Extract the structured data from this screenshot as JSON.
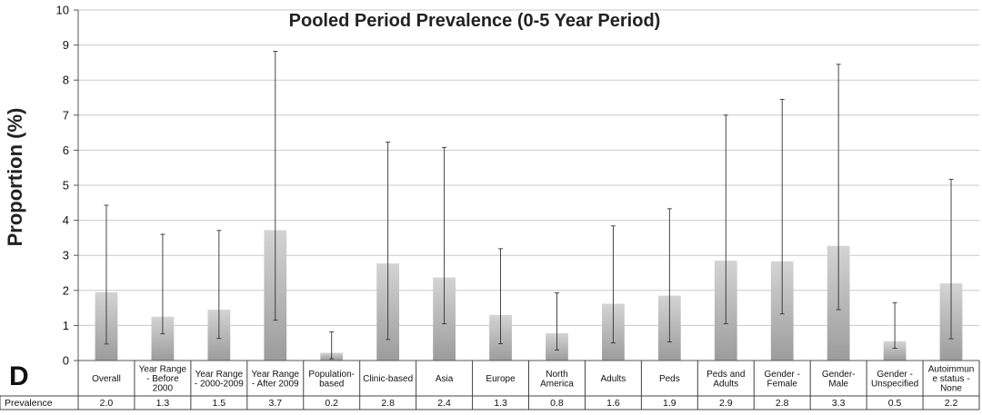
{
  "chart_data": {
    "type": "bar",
    "title": "Pooled Period Prevalence (0-5 Year Period)",
    "ylabel": "Proportion (%)",
    "panel_label": "D",
    "ylim": [
      0,
      10
    ],
    "yticks": [
      0,
      1,
      2,
      3,
      4,
      5,
      6,
      7,
      8,
      9,
      10
    ],
    "grid": true,
    "table_row_label": "Prevalence",
    "categories": [
      [
        "Overall"
      ],
      [
        "Year Range",
        "- Before",
        "2000"
      ],
      [
        "Year Range",
        "- 2000-2009"
      ],
      [
        "Year Range",
        "- After 2009"
      ],
      [
        "Population-",
        "based"
      ],
      [
        "Clinic-based"
      ],
      [
        "Asia"
      ],
      [
        "Europe"
      ],
      [
        "North",
        "America"
      ],
      [
        "Adults"
      ],
      [
        "Peds"
      ],
      [
        "Peds and",
        "Adults"
      ],
      [
        "Gender -",
        "Female"
      ],
      [
        "Gender-",
        "Male"
      ],
      [
        "Gender -",
        "Unspecified"
      ],
      [
        "Autoimmun",
        "e status -",
        "None"
      ]
    ],
    "values": [
      1.95,
      1.25,
      1.45,
      3.72,
      0.22,
      2.77,
      2.37,
      1.3,
      0.78,
      1.62,
      1.85,
      2.85,
      2.83,
      3.27,
      0.55,
      2.2
    ],
    "value_labels": [
      "2.0",
      "1.3",
      "1.5",
      "3.7",
      "0.2",
      "2.8",
      "2.4",
      "1.3",
      "0.8",
      "1.6",
      "1.9",
      "2.9",
      "2.8",
      "3.3",
      "0.5",
      "2.2"
    ],
    "error_low": [
      0.47,
      0.76,
      0.63,
      1.15,
      0.05,
      0.6,
      1.05,
      0.48,
      0.3,
      0.5,
      0.53,
      1.05,
      1.33,
      1.45,
      0.35,
      0.62
    ],
    "error_high": [
      4.43,
      3.6,
      3.71,
      8.82,
      0.82,
      6.23,
      6.08,
      3.19,
      1.93,
      3.84,
      4.33,
      7.0,
      7.45,
      8.45,
      1.65,
      5.17
    ],
    "colors": {
      "bar_top": "#d4d4d4",
      "bar_bottom": "#9c9c9c",
      "grid": "#c9c9c9",
      "axis": "#555555",
      "error": "#333333"
    }
  }
}
